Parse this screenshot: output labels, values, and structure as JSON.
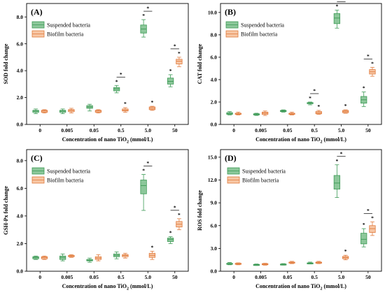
{
  "chart_data": [
    {
      "type": "box",
      "panel_label": "(A)",
      "ylabel": "SOD fold change",
      "xlabel_prefix": "Concentration of nano TiO",
      "xlabel_sub": "2",
      "xlabel_suffix": " (mmol/L)",
      "categories": [
        "0",
        "0.005",
        "0.05",
        "0.5",
        "5.0",
        "50"
      ],
      "ylim": [
        0,
        9
      ],
      "yticks": [
        "0.0",
        "2.0",
        "4.0",
        "6.0",
        "8.0"
      ],
      "ytick_values": [
        0,
        2,
        4,
        6,
        8
      ],
      "legend_position": "top-left",
      "series": [
        {
          "name": "Suspended bacteria",
          "color": "#8cc79a",
          "edge": "#3d9a56",
          "boxes": [
            {
              "min": 0.8,
              "q1": 0.9,
              "med": 1.0,
              "q3": 1.05,
              "max": 1.15
            },
            {
              "min": 0.8,
              "q1": 0.9,
              "med": 1.0,
              "q3": 1.05,
              "max": 1.15
            },
            {
              "min": 1.0,
              "q1": 1.2,
              "med": 1.3,
              "q3": 1.4,
              "max": 1.5
            },
            {
              "min": 2.35,
              "q1": 2.5,
              "med": 2.65,
              "q3": 2.75,
              "max": 2.9
            },
            {
              "min": 6.5,
              "q1": 6.8,
              "med": 7.1,
              "q3": 7.4,
              "max": 7.8
            },
            {
              "min": 2.8,
              "q1": 3.0,
              "med": 3.2,
              "q3": 3.45,
              "max": 3.7
            }
          ]
        },
        {
          "name": "Biofilm bacteria",
          "color": "#f7c6a4",
          "edge": "#e07a3c",
          "boxes": [
            {
              "min": 0.85,
              "q1": 0.9,
              "med": 1.0,
              "q3": 1.05,
              "max": 1.1
            },
            {
              "min": 0.85,
              "q1": 0.95,
              "med": 1.05,
              "q3": 1.1,
              "max": 1.2
            },
            {
              "min": 0.85,
              "q1": 0.9,
              "med": 1.0,
              "q3": 1.05,
              "max": 1.1
            },
            {
              "min": 0.9,
              "q1": 1.0,
              "med": 1.05,
              "q3": 1.15,
              "max": 1.25
            },
            {
              "min": 1.05,
              "q1": 1.1,
              "med": 1.2,
              "q3": 1.3,
              "max": 1.35
            },
            {
              "min": 4.3,
              "q1": 4.5,
              "med": 4.7,
              "q3": 4.85,
              "max": 5.0
            }
          ]
        }
      ],
      "significance": [
        {
          "group": 3,
          "series": [
            0,
            1
          ],
          "label": "*"
        },
        {
          "group": 4,
          "series": [
            0,
            1
          ],
          "label": "*"
        },
        {
          "group": 5,
          "series": [
            0,
            1
          ],
          "label": "*"
        }
      ]
    },
    {
      "type": "box",
      "panel_label": "(B)",
      "ylabel": "CAT fold change",
      "xlabel_prefix": "Concentration of nano TiO",
      "xlabel_sub": "2",
      "xlabel_suffix": " (mmol/L)",
      "categories": [
        "0",
        "0.005",
        "0.05",
        "0.5",
        "5.0",
        "50"
      ],
      "ylim": [
        0,
        10.8
      ],
      "yticks": [
        "0.0",
        "2.0",
        "4.0",
        "6.0",
        "8.0",
        "10.0"
      ],
      "ytick_values": [
        0,
        2,
        4,
        6,
        8,
        10
      ],
      "legend_position": "top-left",
      "series": [
        {
          "name": "Suspended bacteria",
          "color": "#8cc79a",
          "edge": "#3d9a56",
          "boxes": [
            {
              "min": 0.85,
              "q1": 0.9,
              "med": 1.0,
              "q3": 1.05,
              "max": 1.15
            },
            {
              "min": 0.8,
              "q1": 0.85,
              "med": 0.9,
              "q3": 0.95,
              "max": 1.0
            },
            {
              "min": 1.1,
              "q1": 1.15,
              "med": 1.2,
              "q3": 1.25,
              "max": 1.3
            },
            {
              "min": 1.75,
              "q1": 1.85,
              "med": 1.9,
              "q3": 1.95,
              "max": 2.0
            },
            {
              "min": 8.6,
              "q1": 9.0,
              "med": 9.5,
              "q3": 9.9,
              "max": 10.2
            },
            {
              "min": 1.6,
              "q1": 1.9,
              "med": 2.2,
              "q3": 2.5,
              "max": 2.9
            }
          ]
        },
        {
          "name": "Biofilm bacteria",
          "color": "#f7c6a4",
          "edge": "#e07a3c",
          "boxes": [
            {
              "min": 0.85,
              "q1": 0.9,
              "med": 0.95,
              "q3": 1.0,
              "max": 1.1
            },
            {
              "min": 0.8,
              "q1": 0.9,
              "med": 1.0,
              "q3": 1.1,
              "max": 1.2
            },
            {
              "min": 0.85,
              "q1": 0.9,
              "med": 0.95,
              "q3": 1.0,
              "max": 1.1
            },
            {
              "min": 0.9,
              "q1": 0.95,
              "med": 1.05,
              "q3": 1.15,
              "max": 1.25
            },
            {
              "min": 1.0,
              "q1": 1.05,
              "med": 1.15,
              "q3": 1.25,
              "max": 1.3
            },
            {
              "min": 4.3,
              "q1": 4.5,
              "med": 4.7,
              "q3": 4.9,
              "max": 5.1
            }
          ]
        }
      ],
      "significance": [
        {
          "group": 3,
          "series": [
            0,
            1
          ],
          "label": "*"
        },
        {
          "group": 4,
          "series": [
            0,
            1
          ],
          "label": "*"
        },
        {
          "group": 5,
          "series": [
            0,
            1
          ],
          "label": "*"
        }
      ]
    },
    {
      "type": "box",
      "panel_label": "(C)",
      "ylabel": "GSH-Px fold change",
      "xlabel_prefix": "Concentration of nano TiO",
      "xlabel_sub": "2",
      "xlabel_suffix": " (mmol/L)",
      "categories": [
        "0",
        "0.005",
        "0.05",
        "0.5",
        "5.0",
        "50"
      ],
      "ylim": [
        0,
        8.8
      ],
      "yticks": [
        "0.0",
        "2.0",
        "4.0",
        "6.0",
        "8.0"
      ],
      "ytick_values": [
        0,
        2,
        4,
        6,
        8
      ],
      "legend_position": "top-left",
      "series": [
        {
          "name": "Suspended bacteria",
          "color": "#8cc79a",
          "edge": "#3d9a56",
          "boxes": [
            {
              "min": 0.85,
              "q1": 0.9,
              "med": 1.0,
              "q3": 1.05,
              "max": 1.1
            },
            {
              "min": 0.75,
              "q1": 0.85,
              "med": 1.0,
              "q3": 1.1,
              "max": 1.25
            },
            {
              "min": 0.65,
              "q1": 0.75,
              "med": 0.8,
              "q3": 0.85,
              "max": 0.95
            },
            {
              "min": 0.9,
              "q1": 1.05,
              "med": 1.15,
              "q3": 1.25,
              "max": 1.4
            },
            {
              "min": 4.4,
              "q1": 5.6,
              "med": 6.2,
              "q3": 6.6,
              "max": 7.0
            },
            {
              "min": 2.0,
              "q1": 2.15,
              "med": 2.3,
              "q3": 2.4,
              "max": 2.5
            }
          ]
        },
        {
          "name": "Biofilm bacteria",
          "color": "#f7c6a4",
          "edge": "#e07a3c",
          "boxes": [
            {
              "min": 0.85,
              "q1": 0.9,
              "med": 1.0,
              "q3": 1.05,
              "max": 1.1
            },
            {
              "min": 1.0,
              "q1": 1.05,
              "med": 1.1,
              "q3": 1.15,
              "max": 1.2
            },
            {
              "min": 0.75,
              "q1": 0.85,
              "med": 0.95,
              "q3": 1.05,
              "max": 1.2
            },
            {
              "min": 0.95,
              "q1": 1.05,
              "med": 1.15,
              "q3": 1.2,
              "max": 1.3
            },
            {
              "min": 0.85,
              "q1": 1.0,
              "med": 1.15,
              "q3": 1.3,
              "max": 1.45
            },
            {
              "min": 3.0,
              "q1": 3.2,
              "med": 3.4,
              "q3": 3.6,
              "max": 3.8
            }
          ]
        }
      ],
      "significance": [
        {
          "group": 4,
          "series": [
            0,
            1
          ],
          "label": "*"
        },
        {
          "group": 5,
          "series": [
            0,
            1
          ],
          "label": "*"
        }
      ]
    },
    {
      "type": "box",
      "panel_label": "(D)",
      "ylabel": "ROS fold change",
      "xlabel_prefix": "Concentration of nano TiO",
      "xlabel_sub": "2",
      "xlabel_suffix": " (mmol/L)",
      "categories": [
        "0",
        "0.005",
        "0.05",
        "0.5",
        "5.0",
        "50"
      ],
      "ylim": [
        0,
        16
      ],
      "yticks": [
        "0.0",
        "3.0",
        "6.0",
        "9.0",
        "12.0",
        "15.0"
      ],
      "ytick_values": [
        0,
        3,
        6,
        9,
        12,
        15
      ],
      "legend_position": "top-right",
      "series": [
        {
          "name": "Suspended bacteria",
          "color": "#8cc79a",
          "edge": "#3d9a56",
          "boxes": [
            {
              "min": 0.85,
              "q1": 0.9,
              "med": 1.0,
              "q3": 1.05,
              "max": 1.15
            },
            {
              "min": 0.75,
              "q1": 0.8,
              "med": 0.85,
              "q3": 0.9,
              "max": 0.95
            },
            {
              "min": 0.8,
              "q1": 0.85,
              "med": 0.9,
              "q3": 0.95,
              "max": 1.0
            },
            {
              "min": 0.95,
              "q1": 1.0,
              "med": 1.05,
              "q3": 1.1,
              "max": 1.2
            },
            {
              "min": 9.7,
              "q1": 10.8,
              "med": 11.6,
              "q3": 12.6,
              "max": 14.0
            },
            {
              "min": 3.2,
              "q1": 3.6,
              "med": 4.2,
              "q3": 5.0,
              "max": 5.6
            }
          ]
        },
        {
          "name": "Biofilm bacteria",
          "color": "#f7c6a4",
          "edge": "#e07a3c",
          "boxes": [
            {
              "min": 0.85,
              "q1": 0.9,
              "med": 1.0,
              "q3": 1.05,
              "max": 1.1
            },
            {
              "min": 0.8,
              "q1": 0.85,
              "med": 0.9,
              "q3": 1.0,
              "max": 1.05
            },
            {
              "min": 1.0,
              "q1": 1.1,
              "med": 1.15,
              "q3": 1.2,
              "max": 1.3
            },
            {
              "min": 1.0,
              "q1": 1.05,
              "med": 1.15,
              "q3": 1.2,
              "max": 1.3
            },
            {
              "min": 1.5,
              "q1": 1.65,
              "med": 1.8,
              "q3": 1.95,
              "max": 2.1
            },
            {
              "min": 4.7,
              "q1": 5.1,
              "med": 5.6,
              "q3": 6.0,
              "max": 6.5
            }
          ]
        }
      ],
      "significance": [
        {
          "group": 4,
          "series": [
            0,
            1
          ],
          "label": "*"
        },
        {
          "group": 5,
          "series": [
            0,
            1
          ],
          "label": "*"
        }
      ]
    }
  ]
}
